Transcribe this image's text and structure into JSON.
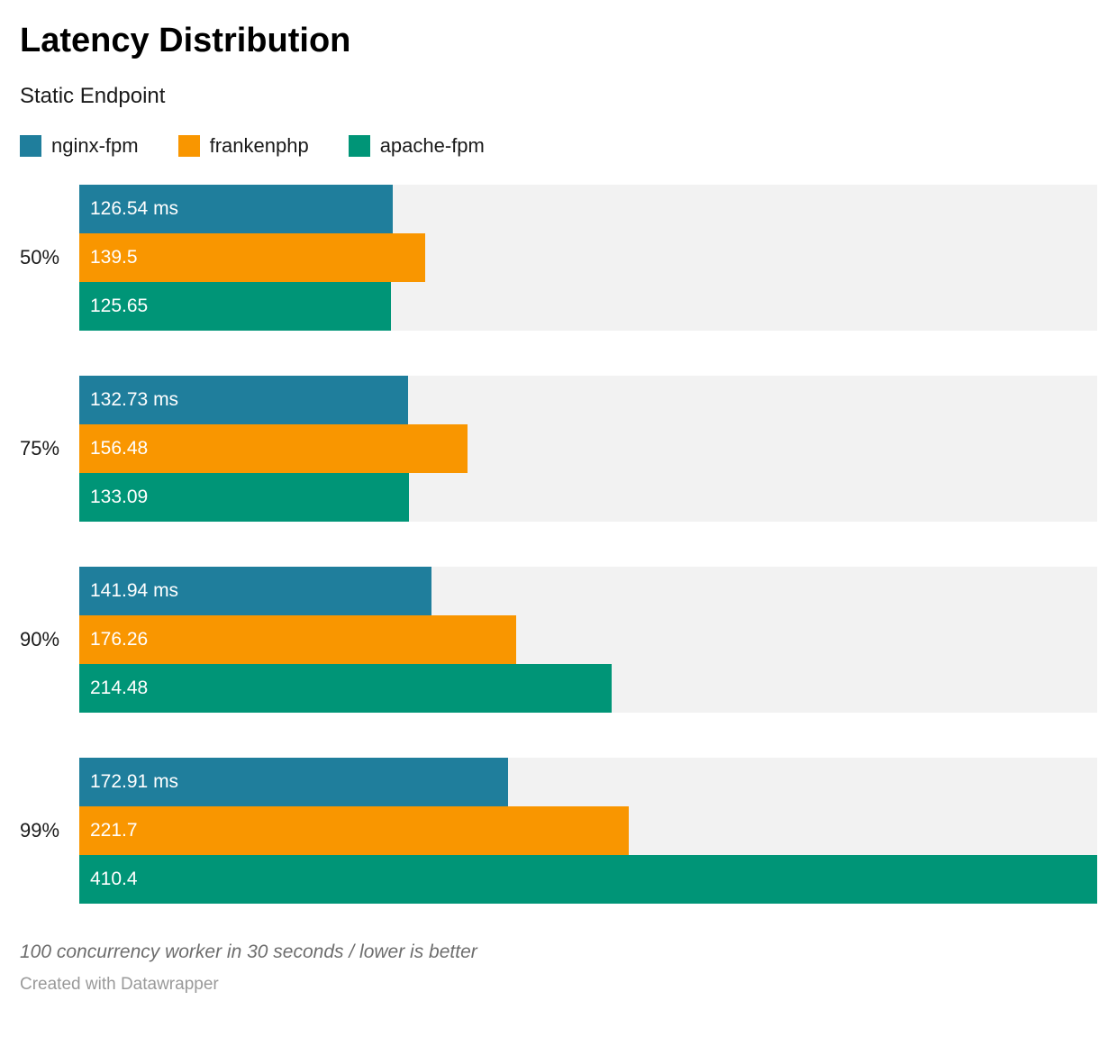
{
  "title": "Latency Distribution",
  "subtitle": "Static Endpoint",
  "chart_data": {
    "type": "bar",
    "orientation": "horizontal",
    "categories": [
      "50%",
      "75%",
      "90%",
      "99%"
    ],
    "series": [
      {
        "name": "nginx-fpm",
        "color": "#1f7e9c",
        "values": [
          126.54,
          132.73,
          141.94,
          172.91
        ],
        "display_labels": [
          "126.54 ms",
          "132.73 ms",
          "141.94 ms",
          "172.91 ms"
        ]
      },
      {
        "name": "frankenphp",
        "color": "#f99600",
        "values": [
          139.5,
          156.48,
          176.26,
          221.7
        ],
        "display_labels": [
          "139.5",
          "156.48",
          "176.26",
          "221.7"
        ]
      },
      {
        "name": "apache-fpm",
        "color": "#009577",
        "values": [
          125.65,
          133.09,
          214.48,
          410.4
        ],
        "display_labels": [
          "125.65",
          "133.09",
          "214.48",
          "410.4"
        ]
      }
    ],
    "unit": "ms",
    "xlim": [
      0,
      410.4
    ],
    "grid": false,
    "legend_position": "top",
    "track_color": "#f2f2f2",
    "value_label_color": "#ffffff"
  },
  "footer": {
    "note": "100 concurrency worker in 30 seconds / lower is better",
    "attribution": "Created with Datawrapper"
  }
}
